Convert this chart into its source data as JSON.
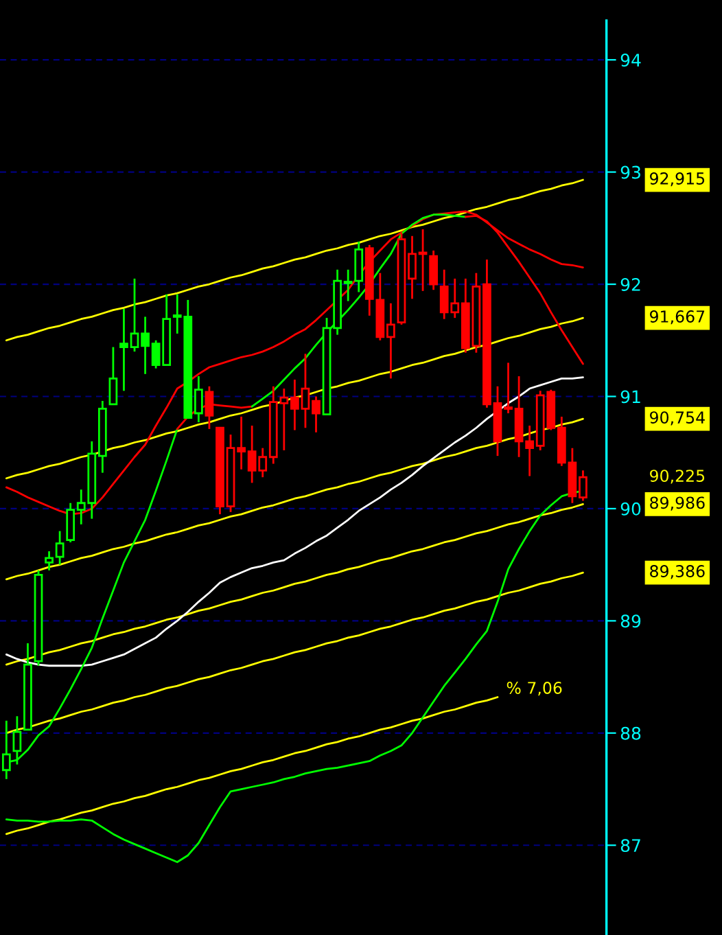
{
  "chart_data": {
    "type": "candlestick",
    "categories": [
      null,
      null,
      null,
      null,
      null,
      null,
      null,
      null,
      null,
      null,
      null,
      null,
      null,
      null,
      null,
      null,
      null,
      null,
      null,
      null,
      null,
      null,
      null,
      null,
      null,
      null,
      null,
      null,
      null,
      null,
      null,
      null,
      null,
      null,
      null,
      null,
      null,
      null,
      null,
      null,
      null,
      null,
      null,
      null,
      null,
      null,
      null,
      null,
      null,
      null,
      null,
      null,
      null,
      null,
      null
    ],
    "ohlc": [
      [
        87.67,
        88.11,
        87.59,
        87.81
      ],
      [
        87.84,
        88.15,
        87.72,
        88.01
      ],
      [
        88.03,
        88.8,
        88.03,
        88.61
      ],
      [
        88.64,
        89.45,
        88.6,
        89.41
      ],
      [
        89.52,
        89.62,
        89.45,
        89.56
      ],
      [
        89.57,
        89.8,
        89.5,
        89.69
      ],
      [
        89.72,
        90.05,
        89.7,
        89.99
      ],
      [
        89.99,
        90.17,
        89.86,
        90.05
      ],
      [
        90.05,
        90.6,
        89.91,
        90.49
      ],
      [
        90.47,
        90.96,
        90.32,
        90.89
      ],
      [
        90.93,
        91.44,
        90.93,
        91.16
      ],
      [
        91.47,
        91.78,
        91.05,
        91.44
      ],
      [
        91.44,
        92.05,
        91.4,
        91.56
      ],
      [
        91.56,
        91.71,
        91.2,
        91.45
      ],
      [
        91.47,
        91.5,
        91.25,
        91.28
      ],
      [
        91.28,
        91.91,
        91.28,
        91.69
      ],
      [
        91.71,
        91.91,
        91.56,
        91.71
      ],
      [
        91.71,
        91.86,
        90.81,
        90.81
      ],
      [
        90.85,
        91.18,
        90.77,
        91.06
      ],
      [
        91.04,
        91.09,
        90.71,
        90.83
      ],
      [
        90.72,
        90.72,
        89.95,
        90.02
      ],
      [
        90.02,
        90.66,
        89.97,
        90.54
      ],
      [
        90.54,
        90.82,
        90.35,
        90.51
      ],
      [
        90.51,
        90.74,
        90.23,
        90.34
      ],
      [
        90.34,
        90.54,
        90.28,
        90.46
      ],
      [
        90.46,
        91.09,
        90.4,
        90.95
      ],
      [
        90.94,
        91.07,
        90.52,
        90.99
      ],
      [
        90.99,
        91.15,
        90.7,
        90.89
      ],
      [
        90.89,
        91.38,
        90.72,
        91.07
      ],
      [
        90.96,
        91.0,
        90.68,
        90.85
      ],
      [
        90.84,
        91.7,
        90.84,
        91.61
      ],
      [
        91.61,
        92.13,
        91.55,
        92.03
      ],
      [
        92.01,
        92.13,
        91.85,
        92.02
      ],
      [
        92.03,
        92.38,
        91.93,
        92.31
      ],
      [
        92.32,
        92.35,
        91.72,
        91.87
      ],
      [
        91.86,
        92.1,
        91.5,
        91.53
      ],
      [
        91.53,
        91.83,
        91.16,
        91.64
      ],
      [
        91.66,
        92.46,
        91.64,
        92.4
      ],
      [
        92.05,
        92.43,
        91.87,
        92.27
      ],
      [
        92.27,
        92.49,
        91.94,
        92.27
      ],
      [
        92.25,
        92.3,
        91.95,
        92.0
      ],
      [
        91.98,
        92.13,
        91.69,
        91.75
      ],
      [
        91.75,
        92.05,
        91.7,
        91.83
      ],
      [
        91.83,
        92.05,
        91.39,
        91.43
      ],
      [
        91.45,
        92.1,
        91.39,
        91.98
      ],
      [
        92.0,
        92.22,
        90.9,
        90.93
      ],
      [
        90.94,
        91.09,
        90.47,
        90.6
      ],
      [
        90.89,
        91.3,
        90.85,
        90.89
      ],
      [
        90.89,
        91.18,
        90.46,
        90.6
      ],
      [
        90.6,
        90.74,
        90.29,
        90.54
      ],
      [
        90.56,
        91.05,
        90.52,
        91.01
      ],
      [
        91.04,
        91.06,
        90.7,
        90.72
      ],
      [
        90.72,
        90.82,
        90.38,
        90.41
      ],
      [
        90.41,
        90.54,
        90.05,
        90.11
      ],
      [
        90.1,
        90.34,
        90.07,
        90.28
      ]
    ],
    "colors": [
      "#00ff00",
      "#00ff00",
      "#00ff00",
      "#00ff00",
      "#00ff00",
      "#00ff00",
      "#00ff00",
      "#00ff00",
      "#00ff00",
      "#00ff00",
      "#00ff00",
      "#00ff00",
      "#00ff00",
      "#00ff00",
      "#00ff00",
      "#00ff00",
      "#00ff00",
      "#00ff00",
      "#00ff00",
      "#ff0000",
      "#ff0000",
      "#ff0000",
      "#ff0000",
      "#ff0000",
      "#ff0000",
      "#ff0000",
      "#ff0000",
      "#ff0000",
      "#ff0000",
      "#ff0000",
      "#00ff00",
      "#00ff00",
      "#00ff00",
      "#00ff00",
      "#ff0000",
      "#ff0000",
      "#ff0000",
      "#ff0000",
      "#ff0000",
      "#ff0000",
      "#ff0000",
      "#ff0000",
      "#ff0000",
      "#ff0000",
      "#ff0000",
      "#ff0000",
      "#ff0000",
      "#ff0000",
      "#ff0000",
      "#ff0000",
      "#ff0000",
      "#ff0000",
      "#ff0000",
      "#ff0000",
      "#ff0000"
    ],
    "series": [
      {
        "type": "line",
        "name": "92,915",
        "color": "#ffff00",
        "values": [
          91.5,
          91.53,
          91.55,
          91.58,
          91.61,
          91.63,
          91.66,
          91.69,
          91.71,
          91.74,
          91.77,
          91.79,
          91.82,
          91.84,
          91.87,
          91.9,
          91.92,
          91.95,
          91.98,
          92.0,
          92.03,
          92.06,
          92.08,
          92.11,
          92.14,
          92.16,
          92.19,
          92.22,
          92.24,
          92.27,
          92.3,
          92.32,
          92.35,
          92.37,
          92.4,
          92.43,
          92.45,
          92.48,
          92.51,
          92.53,
          92.56,
          92.59,
          92.61,
          92.64,
          92.67,
          92.69,
          92.72,
          92.75,
          92.77,
          92.8,
          92.83,
          92.85,
          92.88,
          92.9,
          92.93
        ]
      },
      {
        "type": "line",
        "name": "91,667",
        "color": "#ffff00",
        "values": [
          90.27,
          90.3,
          90.32,
          90.35,
          90.38,
          90.4,
          90.43,
          90.46,
          90.48,
          90.51,
          90.54,
          90.56,
          90.59,
          90.61,
          90.64,
          90.67,
          90.69,
          90.72,
          90.75,
          90.77,
          90.8,
          90.83,
          90.85,
          90.88,
          90.91,
          90.93,
          90.96,
          90.99,
          91.01,
          91.04,
          91.07,
          91.09,
          91.12,
          91.14,
          91.17,
          91.2,
          91.22,
          91.25,
          91.28,
          91.3,
          91.33,
          91.36,
          91.38,
          91.41,
          91.44,
          91.46,
          91.49,
          91.52,
          91.54,
          91.57,
          91.6,
          91.62,
          91.65,
          91.67,
          91.7
        ]
      },
      {
        "type": "line",
        "name": "90,754",
        "color": "#ffff00",
        "values": [
          89.37,
          89.4,
          89.42,
          89.45,
          89.48,
          89.5,
          89.53,
          89.56,
          89.58,
          89.61,
          89.64,
          89.66,
          89.69,
          89.71,
          89.74,
          89.77,
          89.79,
          89.82,
          89.85,
          89.87,
          89.9,
          89.93,
          89.95,
          89.98,
          90.01,
          90.03,
          90.06,
          90.09,
          90.11,
          90.14,
          90.17,
          90.19,
          90.22,
          90.24,
          90.27,
          90.3,
          90.32,
          90.35,
          90.38,
          90.4,
          90.43,
          90.46,
          90.48,
          90.51,
          90.54,
          90.56,
          90.59,
          90.62,
          90.64,
          90.67,
          90.7,
          90.72,
          90.75,
          90.77,
          90.8
        ]
      },
      {
        "type": "line",
        "name": "89,986",
        "color": "#ffff00",
        "values": [
          88.61,
          88.64,
          88.66,
          88.69,
          88.72,
          88.74,
          88.77,
          88.8,
          88.82,
          88.85,
          88.88,
          88.9,
          88.93,
          88.95,
          88.98,
          89.01,
          89.03,
          89.06,
          89.09,
          89.11,
          89.14,
          89.17,
          89.19,
          89.22,
          89.25,
          89.27,
          89.3,
          89.33,
          89.35,
          89.38,
          89.41,
          89.43,
          89.46,
          89.48,
          89.51,
          89.54,
          89.56,
          89.59,
          89.62,
          89.64,
          89.67,
          89.7,
          89.72,
          89.75,
          89.78,
          89.8,
          89.83,
          89.86,
          89.88,
          89.91,
          89.94,
          89.96,
          89.99,
          90.01,
          90.04
        ]
      },
      {
        "type": "line",
        "name": "89,386",
        "color": "#ffff00",
        "values": [
          88.0,
          88.03,
          88.05,
          88.08,
          88.11,
          88.13,
          88.16,
          88.19,
          88.21,
          88.24,
          88.27,
          88.29,
          88.32,
          88.34,
          88.37,
          88.4,
          88.42,
          88.45,
          88.48,
          88.5,
          88.53,
          88.56,
          88.58,
          88.61,
          88.64,
          88.66,
          88.69,
          88.72,
          88.74,
          88.77,
          88.8,
          88.82,
          88.85,
          88.87,
          88.9,
          88.93,
          88.95,
          88.98,
          89.01,
          89.03,
          89.06,
          89.09,
          89.11,
          89.14,
          89.17,
          89.19,
          89.22,
          89.25,
          89.27,
          89.3,
          89.33,
          89.35,
          89.38,
          89.4,
          89.43
        ]
      },
      {
        "type": "line",
        "name": "% 7,06",
        "color": "#ffff00",
        "values": [
          87.1,
          87.13,
          87.15,
          87.18,
          87.21,
          87.23,
          87.26,
          87.29,
          87.31,
          87.34,
          87.37,
          87.39,
          87.42,
          87.44,
          87.47,
          87.5,
          87.52,
          87.55,
          87.58,
          87.6,
          87.63,
          87.66,
          87.68,
          87.71,
          87.74,
          87.76,
          87.79,
          87.82,
          87.84,
          87.87,
          87.9,
          87.92,
          87.95,
          87.97,
          88.0,
          88.03,
          88.05,
          88.08,
          88.11,
          88.13,
          88.16,
          88.19,
          88.21,
          88.24,
          88.27,
          88.29,
          88.32,
          null,
          null,
          null,
          null,
          null,
          null,
          null,
          null
        ]
      },
      {
        "type": "line",
        "color": "#ff0000",
        "values": [
          90.19,
          90.15,
          90.1,
          90.06,
          90.02,
          89.98,
          89.95,
          89.96,
          90.0,
          90.1,
          90.22,
          90.34,
          90.46,
          90.57,
          90.74,
          90.9,
          91.07,
          91.13,
          91.2,
          91.26,
          91.29,
          91.32,
          91.35,
          91.37,
          91.4,
          91.44,
          91.49,
          91.55,
          91.6,
          91.68,
          91.77,
          91.86,
          91.95,
          92.08,
          92.2,
          92.3,
          92.4,
          92.46,
          92.52,
          92.58,
          92.62,
          92.63,
          92.64,
          92.65,
          92.62,
          92.55,
          92.48,
          92.41,
          92.36,
          92.31,
          92.27,
          92.22,
          92.18,
          92.17,
          92.15
        ]
      },
      {
        "type": "line",
        "color": "#ffffff",
        "values": [
          88.7,
          88.66,
          88.63,
          88.61,
          88.6,
          88.6,
          88.6,
          88.6,
          88.61,
          88.64,
          88.67,
          88.7,
          88.75,
          88.8,
          88.85,
          88.93,
          89.0,
          89.08,
          89.17,
          89.25,
          89.34,
          89.39,
          89.43,
          89.47,
          89.49,
          89.52,
          89.54,
          89.6,
          89.65,
          89.71,
          89.76,
          89.83,
          89.9,
          89.98,
          90.04,
          90.1,
          90.17,
          90.23,
          90.3,
          90.38,
          90.45,
          90.52,
          90.59,
          90.65,
          90.72,
          90.8,
          90.87,
          90.94,
          91.0,
          91.07,
          91.1,
          91.13,
          91.16,
          91.16,
          91.17
        ]
      },
      {
        "type": "line",
        "color": "#00ff00",
        "values": [
          87.74,
          87.76,
          87.85,
          87.98,
          88.06,
          88.22,
          88.39,
          88.57,
          88.76,
          89.02,
          89.27,
          89.52,
          89.71,
          89.9,
          90.16,
          90.43,
          90.71,
          null,
          null,
          null,
          null,
          null,
          null,
          null,
          null,
          null,
          null,
          null,
          null,
          null,
          null,
          null,
          null,
          null,
          null,
          null,
          null,
          null,
          null,
          null,
          null,
          null,
          null,
          null,
          null,
          null,
          null,
          null,
          null,
          null,
          null,
          null,
          null,
          null,
          null
        ]
      },
      {
        "type": "line",
        "color": "#ff0000",
        "values": [
          null,
          null,
          null,
          null,
          null,
          null,
          null,
          null,
          null,
          null,
          null,
          null,
          null,
          null,
          null,
          null,
          90.71,
          90.82,
          90.89,
          90.93,
          90.92,
          90.91,
          90.9,
          90.91,
          null,
          null,
          null,
          null,
          null,
          null,
          null,
          null,
          null,
          null,
          null,
          null,
          null,
          null,
          null,
          null,
          null,
          null,
          null,
          null,
          null,
          null,
          null,
          null,
          null,
          null,
          null,
          null,
          null,
          null,
          null
        ]
      },
      {
        "type": "line",
        "color": "#00ff00",
        "values": [
          null,
          null,
          null,
          null,
          null,
          null,
          null,
          null,
          null,
          null,
          null,
          null,
          null,
          null,
          null,
          null,
          null,
          null,
          null,
          null,
          null,
          null,
          null,
          90.91,
          90.98,
          91.05,
          91.15,
          91.25,
          91.34,
          91.46,
          91.57,
          91.67,
          91.77,
          91.88,
          92.0,
          92.14,
          92.27,
          92.45,
          92.53,
          92.59,
          92.62,
          92.62,
          92.61,
          92.6,
          null,
          null,
          null,
          null,
          null,
          null,
          null,
          null,
          null,
          null,
          null
        ]
      },
      {
        "type": "line",
        "color": "#ff0000",
        "values": [
          null,
          null,
          null,
          null,
          null,
          null,
          null,
          null,
          null,
          null,
          null,
          null,
          null,
          null,
          null,
          null,
          null,
          null,
          null,
          null,
          null,
          null,
          null,
          null,
          null,
          null,
          null,
          null,
          null,
          null,
          null,
          null,
          null,
          null,
          null,
          null,
          null,
          null,
          null,
          null,
          null,
          null,
          null,
          92.6,
          92.61,
          92.56,
          92.46,
          92.33,
          92.2,
          92.06,
          91.92,
          91.75,
          91.59,
          91.44,
          91.29
        ]
      },
      {
        "type": "line",
        "color": "#00ff00",
        "values": [
          87.23,
          87.22,
          87.22,
          87.21,
          87.21,
          87.22,
          87.22,
          87.23,
          87.22,
          87.16,
          87.1,
          87.05,
          87.01,
          86.97,
          86.93,
          86.89,
          86.85,
          86.91,
          87.02,
          87.18,
          87.34,
          87.48,
          87.5,
          87.52,
          87.54,
          87.56,
          87.59,
          87.61,
          87.64,
          87.66,
          87.68,
          87.69,
          87.71,
          87.73,
          87.75,
          87.8,
          87.84,
          87.89,
          88.0,
          88.14,
          88.28,
          88.42,
          88.54,
          88.66,
          88.79,
          88.91,
          89.17,
          89.46,
          89.64,
          89.8,
          89.94,
          90.03,
          90.11,
          90.14,
          90.16
        ]
      }
    ],
    "ylim": [
      86.2,
      94.35
    ],
    "yticks": [
      87,
      88,
      89,
      90,
      91,
      92,
      93,
      94
    ],
    "grid": "y",
    "tick_labels": "y",
    "annotations": [
      "90,225"
    ]
  }
}
